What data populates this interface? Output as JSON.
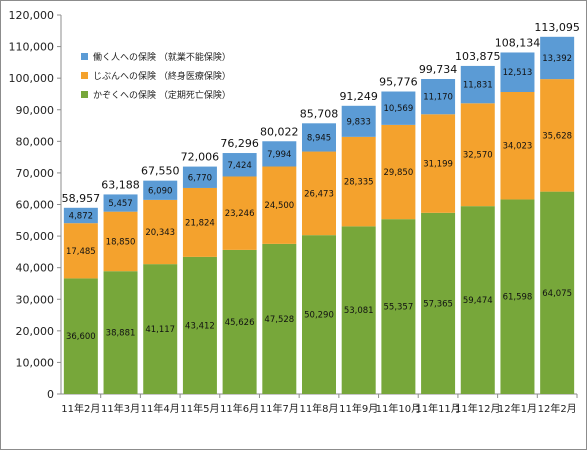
{
  "chart_data": {
    "type": "bar",
    "stacked": true,
    "title": "",
    "xlabel": "",
    "ylabel": "",
    "ylim": [
      0,
      120000
    ],
    "ytick_step": 10000,
    "ytick_labels": [
      "0",
      "10,000",
      "20,000",
      "30,000",
      "40,000",
      "50,000",
      "60,000",
      "70,000",
      "80,000",
      "90,000",
      "100,000",
      "110,000",
      "120,000"
    ],
    "grid": false,
    "legend_position": "top-left",
    "categories": [
      "11年2月",
      "11年3月",
      "11年4月",
      "11年5月",
      "11年6月",
      "11年7月",
      "11年8月",
      "11年9月",
      "11年10月",
      "11年11月",
      "11年12月",
      "12年1月",
      "12年2月"
    ],
    "series": [
      {
        "name": "かぞくへの保険 （定期死亡保険）",
        "color": "#77a73a",
        "values": [
          36600,
          38881,
          41117,
          43412,
          45626,
          47528,
          50290,
          53081,
          55357,
          57365,
          59474,
          61598,
          64075
        ],
        "labels": [
          "36,600",
          "38,881",
          "41,117",
          "43,412",
          "45,626",
          "47,528",
          "50,290",
          "53,081",
          "55,357",
          "57,365",
          "59,474",
          "61,598",
          "64,075"
        ]
      },
      {
        "name": "じぶんへの保険 （終身医療保険）",
        "color": "#f4a22d",
        "values": [
          17485,
          18850,
          20343,
          21824,
          23246,
          24500,
          26473,
          28335,
          29850,
          31199,
          32570,
          34023,
          35628
        ],
        "labels": [
          "17,485",
          "18,850",
          "20,343",
          "21,824",
          "23,246",
          "24,500",
          "26,473",
          "28,335",
          "29,850",
          "31,199",
          "32,570",
          "34,023",
          "35,628"
        ]
      },
      {
        "name": "働く人への保険 （就業不能保険）",
        "color": "#5b9bd5",
        "values": [
          4872,
          5457,
          6090,
          6770,
          7424,
          7994,
          8945,
          9833,
          10569,
          11170,
          11831,
          12513,
          13392
        ],
        "labels": [
          "4,872",
          "5,457",
          "6,090",
          "6,770",
          "7,424",
          "7,994",
          "8,945",
          "9,833",
          "10,569",
          "11,170",
          "11,831",
          "12,513",
          "13,392"
        ]
      }
    ],
    "totals": [
      58957,
      63188,
      67550,
      72006,
      76296,
      80022,
      85708,
      91249,
      95776,
      99734,
      103875,
      108134,
      113095
    ],
    "total_labels": [
      "58,957",
      "63,188",
      "67,550",
      "72,006",
      "76,296",
      "80,022",
      "85,708",
      "91,249",
      "95,776",
      "99,734",
      "103,875",
      "108,134",
      "113,095"
    ],
    "legend": [
      {
        "label": "働く人への保険 （就業不能保険）",
        "color": "#5b9bd5"
      },
      {
        "label": "じぶんへの保険 （終身医療保険）",
        "color": "#f4a22d"
      },
      {
        "label": "かぞくへの保険 （定期死亡保険）",
        "color": "#77a73a"
      }
    ]
  }
}
